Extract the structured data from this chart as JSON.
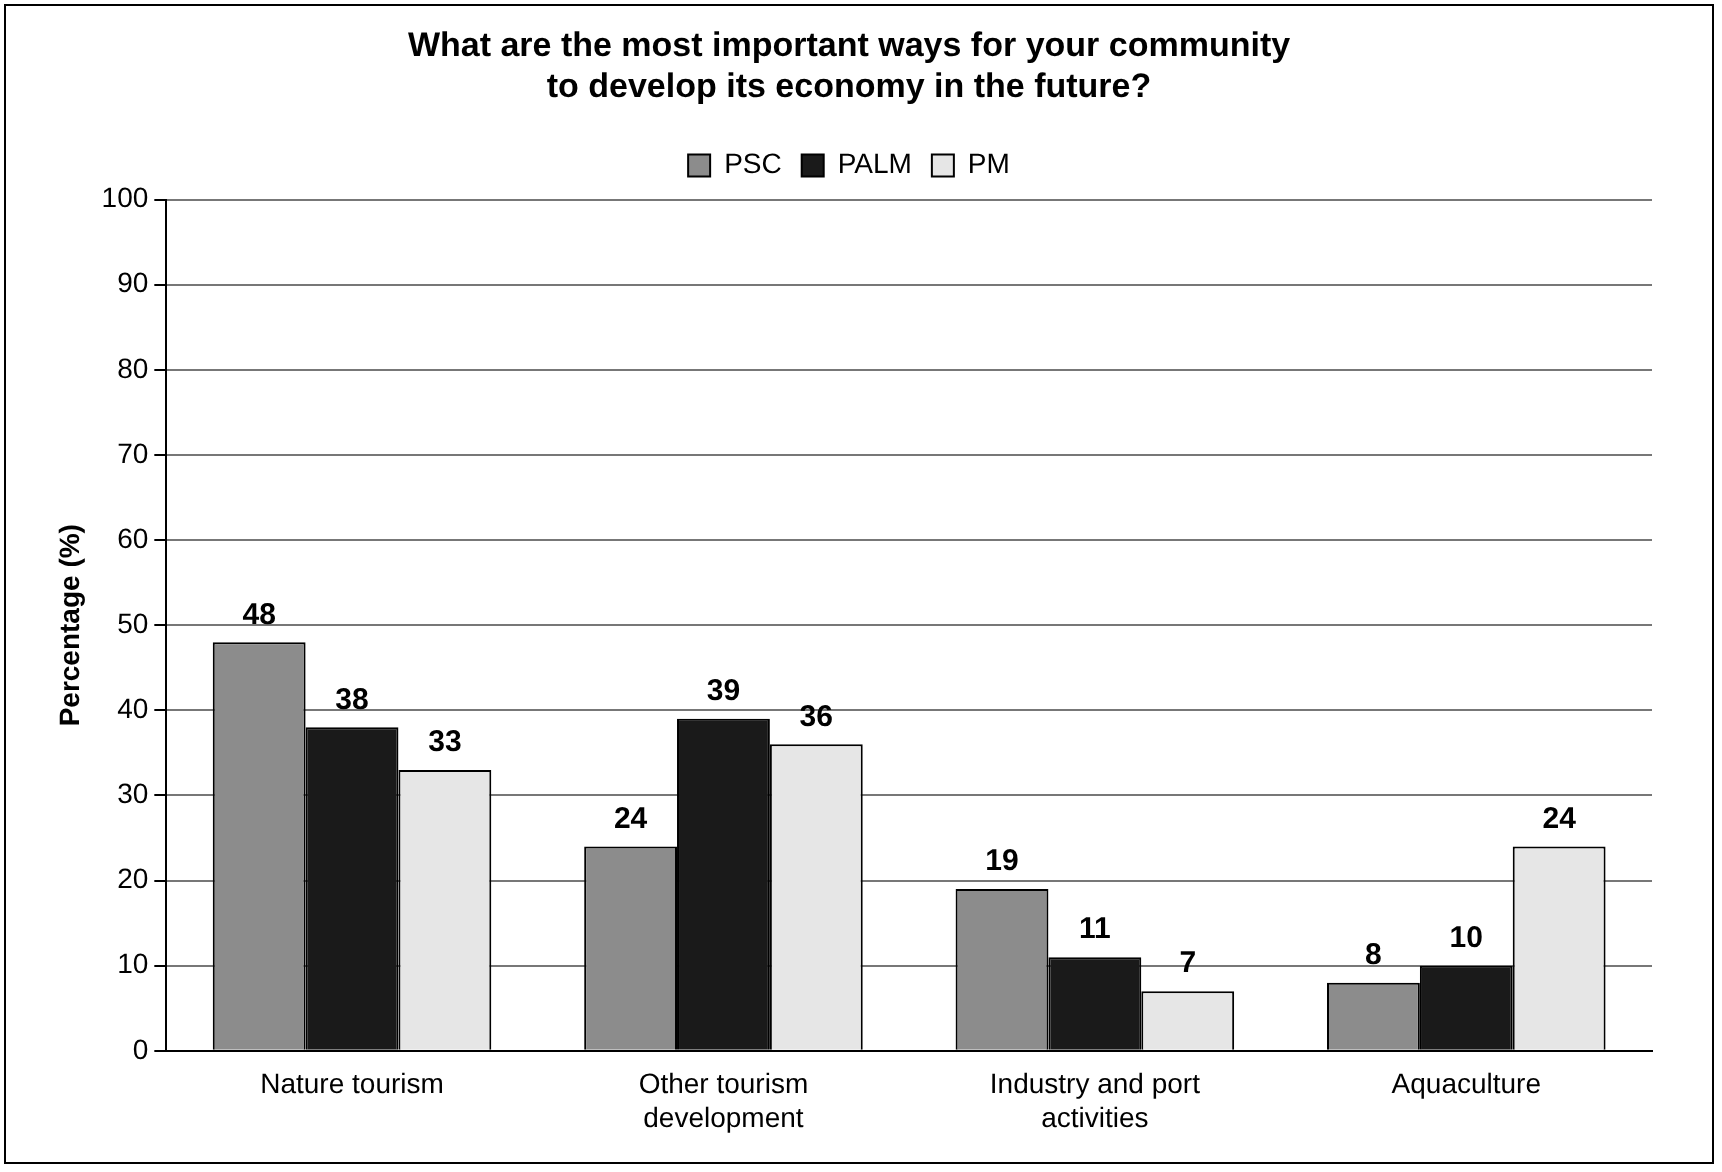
{
  "chart_data": {
    "type": "bar",
    "title": "What are the most important ways for your community to develop its economy in the future?",
    "ylabel": "Percentage (%)",
    "categories": [
      "Nature tourism",
      "Other tourism development",
      "Industry and port activities",
      "Aquaculture"
    ],
    "series": [
      {
        "name": "PSC",
        "color": "#8c8c8c",
        "values": [
          48,
          24,
          19,
          8
        ]
      },
      {
        "name": "PALM",
        "color": "#1a1a1a",
        "values": [
          38,
          39,
          11,
          10
        ]
      },
      {
        "name": "PM",
        "color": "#e6e6e6",
        "values": [
          33,
          36,
          7,
          24
        ]
      }
    ],
    "ylim": [
      0,
      100
    ],
    "yticks": [
      0,
      10,
      20,
      30,
      40,
      50,
      60,
      70,
      80,
      90,
      100
    ],
    "grid": "y",
    "legend": "top",
    "data_labels": true
  }
}
